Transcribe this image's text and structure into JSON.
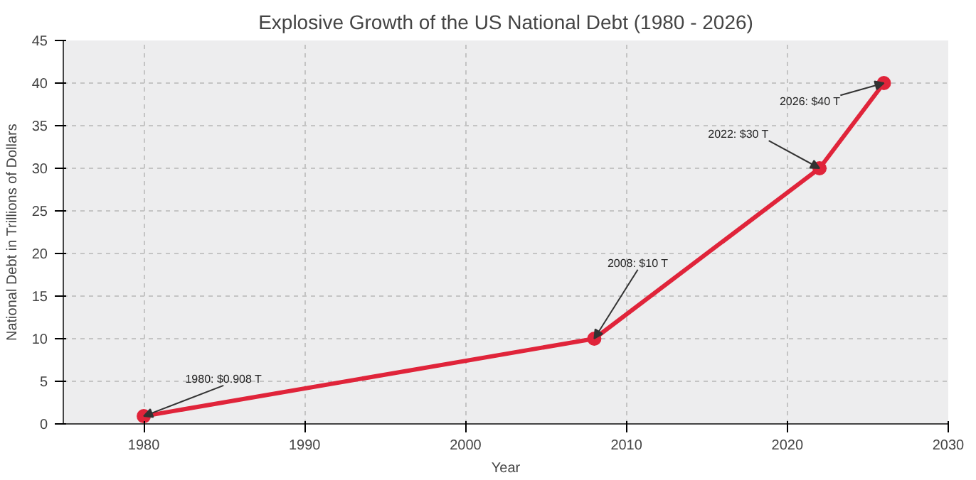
{
  "chart_data": {
    "type": "line",
    "title": "Explosive Growth of the US National Debt (1980 - 2026)",
    "xlabel": "Year",
    "ylabel": "National Debt in Trillions of Dollars",
    "x": [
      1980,
      2008,
      2022,
      2026
    ],
    "series": [
      {
        "color": "#e0243a",
        "values": [
          0.908,
          10,
          30,
          40
        ]
      }
    ],
    "xlim": [
      1975,
      2030
    ],
    "xticks": [
      1980,
      1990,
      2000,
      2010,
      2020,
      2030
    ],
    "ylim": [
      0,
      45
    ],
    "yticks": [
      0,
      5,
      10,
      15,
      20,
      25,
      30,
      35,
      40,
      45
    ],
    "grid": true,
    "marker": "circle",
    "line_style": "solid",
    "annotations": [
      {
        "text": "1980: $0.908 T",
        "x": 1980,
        "y": 0.908
      },
      {
        "text": "2008: $10 T",
        "x": 2008,
        "y": 10
      },
      {
        "text": "2022: $30 T",
        "x": 2022,
        "y": 30
      },
      {
        "text": "2026: $40 T",
        "x": 2026,
        "y": 40
      }
    ]
  }
}
